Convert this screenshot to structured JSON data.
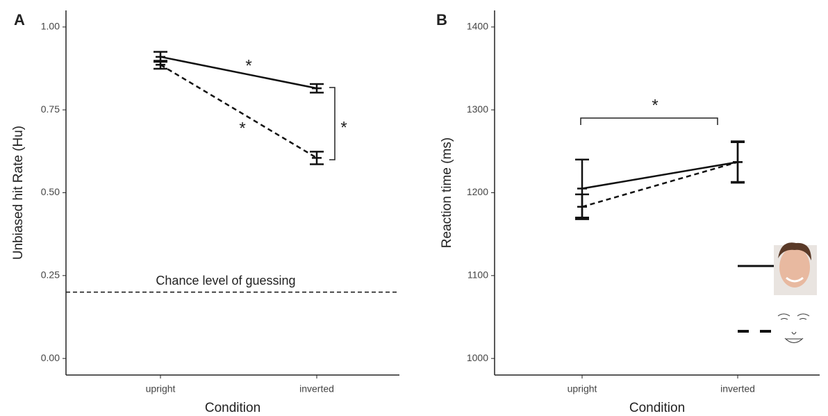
{
  "chart_data": [
    {
      "type": "line",
      "panel": "A",
      "y_label": "Unbiased hit Rate (Hu)",
      "x_label": "Condition",
      "categories": [
        "upright",
        "inverted"
      ],
      "ylim": [
        -0.05,
        1.05
      ],
      "yticks": [
        {
          "value": 0,
          "label": "0.00"
        },
        {
          "value": 0.25,
          "label": "0.25"
        },
        {
          "value": 0.5,
          "label": "0.50"
        },
        {
          "value": 0.75,
          "label": "0.75"
        },
        {
          "value": 1,
          "label": "1.00"
        }
      ],
      "series": [
        {
          "color": "#111111",
          "dash": false,
          "values": [
            0.91,
            0.815
          ],
          "errors": [
            0.015,
            0.013
          ]
        },
        {
          "color": "#111111",
          "dash": true,
          "values": [
            0.886,
            0.605
          ],
          "errors": [
            0.012,
            0.019
          ]
        }
      ],
      "hline": 0.2,
      "annotations": [
        "*",
        "*",
        "*",
        "Chance level of guessing"
      ]
    },
    {
      "type": "line",
      "panel": "B",
      "y_label": "Reaction time (ms)",
      "x_label": "Condition",
      "categories": [
        "upright",
        "inverted"
      ],
      "ylim": [
        980,
        1420
      ],
      "yticks": [
        1000,
        1100,
        1200,
        1300,
        1400
      ],
      "series": [
        {
          "color": "#111111",
          "dash": false,
          "values": [
            1205,
            1237
          ],
          "errors": [
            35,
            25
          ]
        },
        {
          "color": "#111111",
          "dash": true,
          "values": [
            1183,
            1237
          ],
          "errors": [
            15,
            24
          ]
        }
      ],
      "annotations": [
        "*"
      ]
    }
  ]
}
